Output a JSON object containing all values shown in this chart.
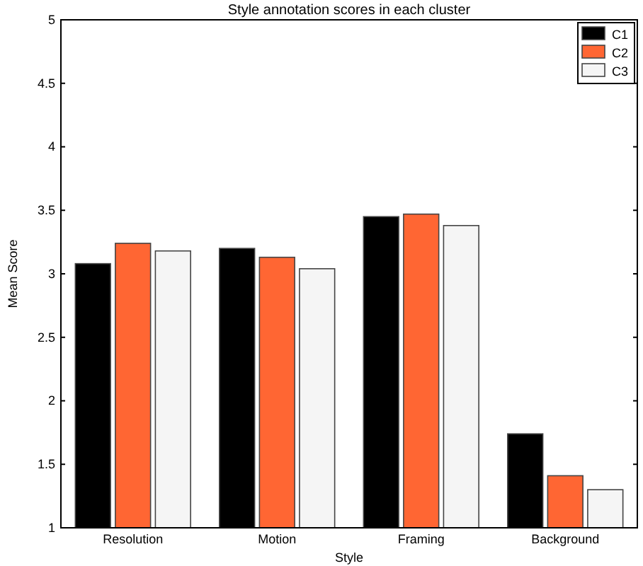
{
  "chart_data": {
    "type": "bar",
    "title": "Style annotation scores in each cluster",
    "xlabel": "Style",
    "ylabel": "Mean Score",
    "categories": [
      "Resolution",
      "Motion",
      "Framing",
      "Background"
    ],
    "series": [
      {
        "name": "C1",
        "color": "#000000",
        "values": [
          3.08,
          3.2,
          3.45,
          1.74
        ]
      },
      {
        "name": "C2",
        "color": "#ff6633",
        "values": [
          3.24,
          3.13,
          3.47,
          1.41
        ]
      },
      {
        "name": "C3",
        "color": "#f5f5f5",
        "values": [
          3.18,
          3.04,
          3.38,
          1.3
        ]
      }
    ],
    "ylim": [
      1,
      5
    ],
    "yticks": [
      1,
      1.5,
      2,
      2.5,
      3,
      3.5,
      4,
      4.5,
      5
    ],
    "grid": false,
    "legend": "top right"
  }
}
